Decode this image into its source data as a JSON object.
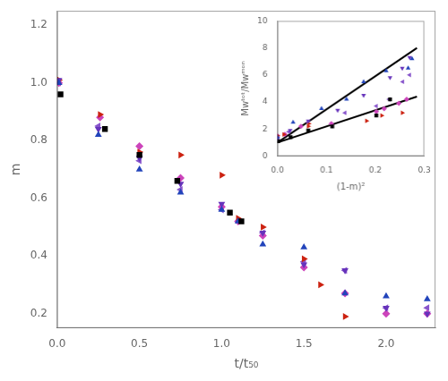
{
  "chart_data": [
    {
      "type": "scatter",
      "xlabel": "t/t₅₀",
      "ylabel": "m",
      "xlim": [
        0.0,
        2.3
      ],
      "ylim": [
        0.15,
        1.25
      ],
      "xticks": [
        {
          "value": 0.0,
          "label": "0.0"
        },
        {
          "value": 0.5,
          "label": "0.5"
        },
        {
          "value": 1.0,
          "label": "1.0"
        },
        {
          "value": 1.5,
          "label": "1.5"
        },
        {
          "value": 2.0,
          "label": "2.0"
        }
      ],
      "yticks": [
        {
          "value": 0.2,
          "label": "0.2"
        },
        {
          "value": 0.4,
          "label": "0.4"
        },
        {
          "value": 0.6,
          "label": "0.6"
        },
        {
          "value": 0.8,
          "label": "0.8"
        },
        {
          "value": 1.0,
          "label": "1.0"
        },
        {
          "value": 1.2,
          "label": "1.2"
        }
      ],
      "grid": false,
      "series": [
        {
          "color": "#000000",
          "marker": "square",
          "x": [
            0.02,
            0.29,
            0.5,
            0.73,
            1.05,
            1.12
          ],
          "values": [
            0.96,
            0.84,
            0.75,
            0.66,
            0.55,
            0.52
          ]
        },
        {
          "color": "#2244bb",
          "marker": "triangle_up",
          "x": [
            0.01,
            0.25,
            0.5,
            0.75,
            1.0,
            1.1,
            1.25,
            1.5,
            1.75,
            2.0,
            2.25
          ],
          "values": [
            1.0,
            0.82,
            0.7,
            0.62,
            0.56,
            0.52,
            0.44,
            0.43,
            0.27,
            0.26,
            0.25
          ]
        },
        {
          "color": "#6633bb",
          "marker": "triangle_down",
          "x": [
            0.01,
            0.25,
            0.5,
            0.75,
            1.0,
            1.25,
            1.5,
            1.75,
            2.0,
            2.25
          ],
          "values": [
            1.01,
            0.84,
            0.74,
            0.65,
            0.58,
            0.48,
            0.37,
            0.35,
            0.22,
            0.2
          ]
        },
        {
          "color": "#cc2211",
          "marker": "triangle_right",
          "x": [
            0.01,
            0.26,
            0.5,
            0.75,
            1.0,
            1.1,
            1.25,
            1.5,
            1.6,
            1.75
          ],
          "values": [
            1.01,
            0.89,
            0.76,
            0.75,
            0.68,
            0.53,
            0.5,
            0.39,
            0.3,
            0.19
          ]
        },
        {
          "color": "#cc44bb",
          "marker": "diamond",
          "x": [
            0.01,
            0.26,
            0.5,
            0.75,
            1.0,
            1.1,
            1.25,
            1.5,
            1.75,
            2.0,
            2.25
          ],
          "values": [
            1.0,
            0.88,
            0.78,
            0.67,
            0.57,
            0.52,
            0.47,
            0.36,
            0.27,
            0.2,
            0.2
          ]
        },
        {
          "color": "#8855cc",
          "marker": "triangle_left",
          "x": [
            0.01,
            0.25,
            0.5,
            0.75,
            1.0,
            1.25,
            1.5,
            1.75,
            2.0,
            2.25
          ],
          "values": [
            1.0,
            0.85,
            0.73,
            0.63,
            0.56,
            0.48,
            0.38,
            0.35,
            0.22,
            0.22
          ]
        }
      ]
    },
    {
      "type": "scatter",
      "xlabel": "(1-m)²",
      "ylabel": "Mwᵗᵒᵗ/Mwᵐᵒⁿ",
      "xlim": [
        0.0,
        0.3
      ],
      "ylim": [
        0.0,
        10.0
      ],
      "xticks": [
        {
          "value": 0.0,
          "label": "0.0"
        },
        {
          "value": 0.1,
          "label": "0.1"
        },
        {
          "value": 0.2,
          "label": "0.2"
        },
        {
          "value": 0.3,
          "label": "0.3"
        }
      ],
      "yticks": [
        0,
        2,
        4,
        6,
        8,
        10
      ],
      "grid": false,
      "series": [
        {
          "color": "#000000",
          "marker": "square",
          "x": [
            0.0016,
            0.027,
            0.063,
            0.112,
            0.202,
            0.23
          ],
          "values": [
            1.1,
            1.4,
            1.9,
            2.2,
            3.0,
            4.2
          ]
        },
        {
          "color": "#2244bb",
          "marker": "triangle_up",
          "x": [
            0.0,
            0.032,
            0.09,
            0.141,
            0.176,
            0.222,
            0.267,
            0.275
          ],
          "values": [
            1.4,
            2.5,
            3.5,
            4.2,
            5.5,
            6.3,
            6.5,
            7.2
          ]
        },
        {
          "color": "#6633bb",
          "marker": "triangle_down",
          "x": [
            0.0,
            0.026,
            0.063,
            0.123,
            0.176,
            0.23,
            0.255,
            0.27
          ],
          "values": [
            1.3,
            1.9,
            2.6,
            3.4,
            4.5,
            5.8,
            6.5,
            7.3
          ]
        },
        {
          "color": "#cc2211",
          "marker": "triangle_right",
          "x": [
            0.0,
            0.013,
            0.063,
            0.064,
            0.182,
            0.213,
            0.255
          ],
          "values": [
            1.5,
            1.6,
            2.2,
            2.4,
            2.6,
            3.0,
            3.2
          ]
        },
        {
          "color": "#cc44bb",
          "marker": "diamond",
          "x": [
            0.0,
            0.015,
            0.048,
            0.11,
            0.202,
            0.218,
            0.248,
            0.264
          ],
          "values": [
            1.5,
            1.6,
            2.2,
            2.4,
            3.3,
            3.5,
            3.9,
            4.2
          ]
        },
        {
          "color": "#8855cc",
          "marker": "triangle_left",
          "x": [
            0.001,
            0.023,
            0.062,
            0.138,
            0.202,
            0.228,
            0.256,
            0.27
          ],
          "values": [
            1.3,
            1.8,
            2.5,
            3.2,
            3.7,
            4.2,
            5.5,
            6.0
          ]
        },
        {
          "type": "line",
          "line_style": "solid",
          "color": "#000000",
          "x": [
            0.0,
            0.285
          ],
          "values": [
            1.0,
            8.0
          ]
        },
        {
          "type": "line",
          "line_style": "solid",
          "color": "#000000",
          "x": [
            0.0,
            0.285
          ],
          "values": [
            1.0,
            4.4
          ]
        }
      ]
    }
  ]
}
